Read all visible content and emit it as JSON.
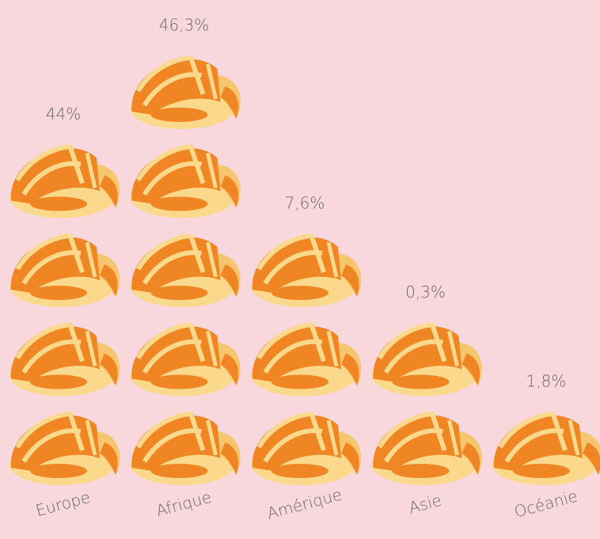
{
  "chart_data": {
    "type": "pictogram",
    "categories": [
      "Europe",
      "Afrique",
      "Amérique",
      "Asie",
      "Océanie"
    ],
    "values": [
      44,
      46.3,
      7.6,
      0.3,
      1.8
    ],
    "value_labels": [
      "44%",
      "46,3%",
      "7,6%",
      "0,3%",
      "1,8%"
    ],
    "icon_counts": [
      4,
      5,
      3,
      2,
      1
    ],
    "color": "#ef8523"
  }
}
